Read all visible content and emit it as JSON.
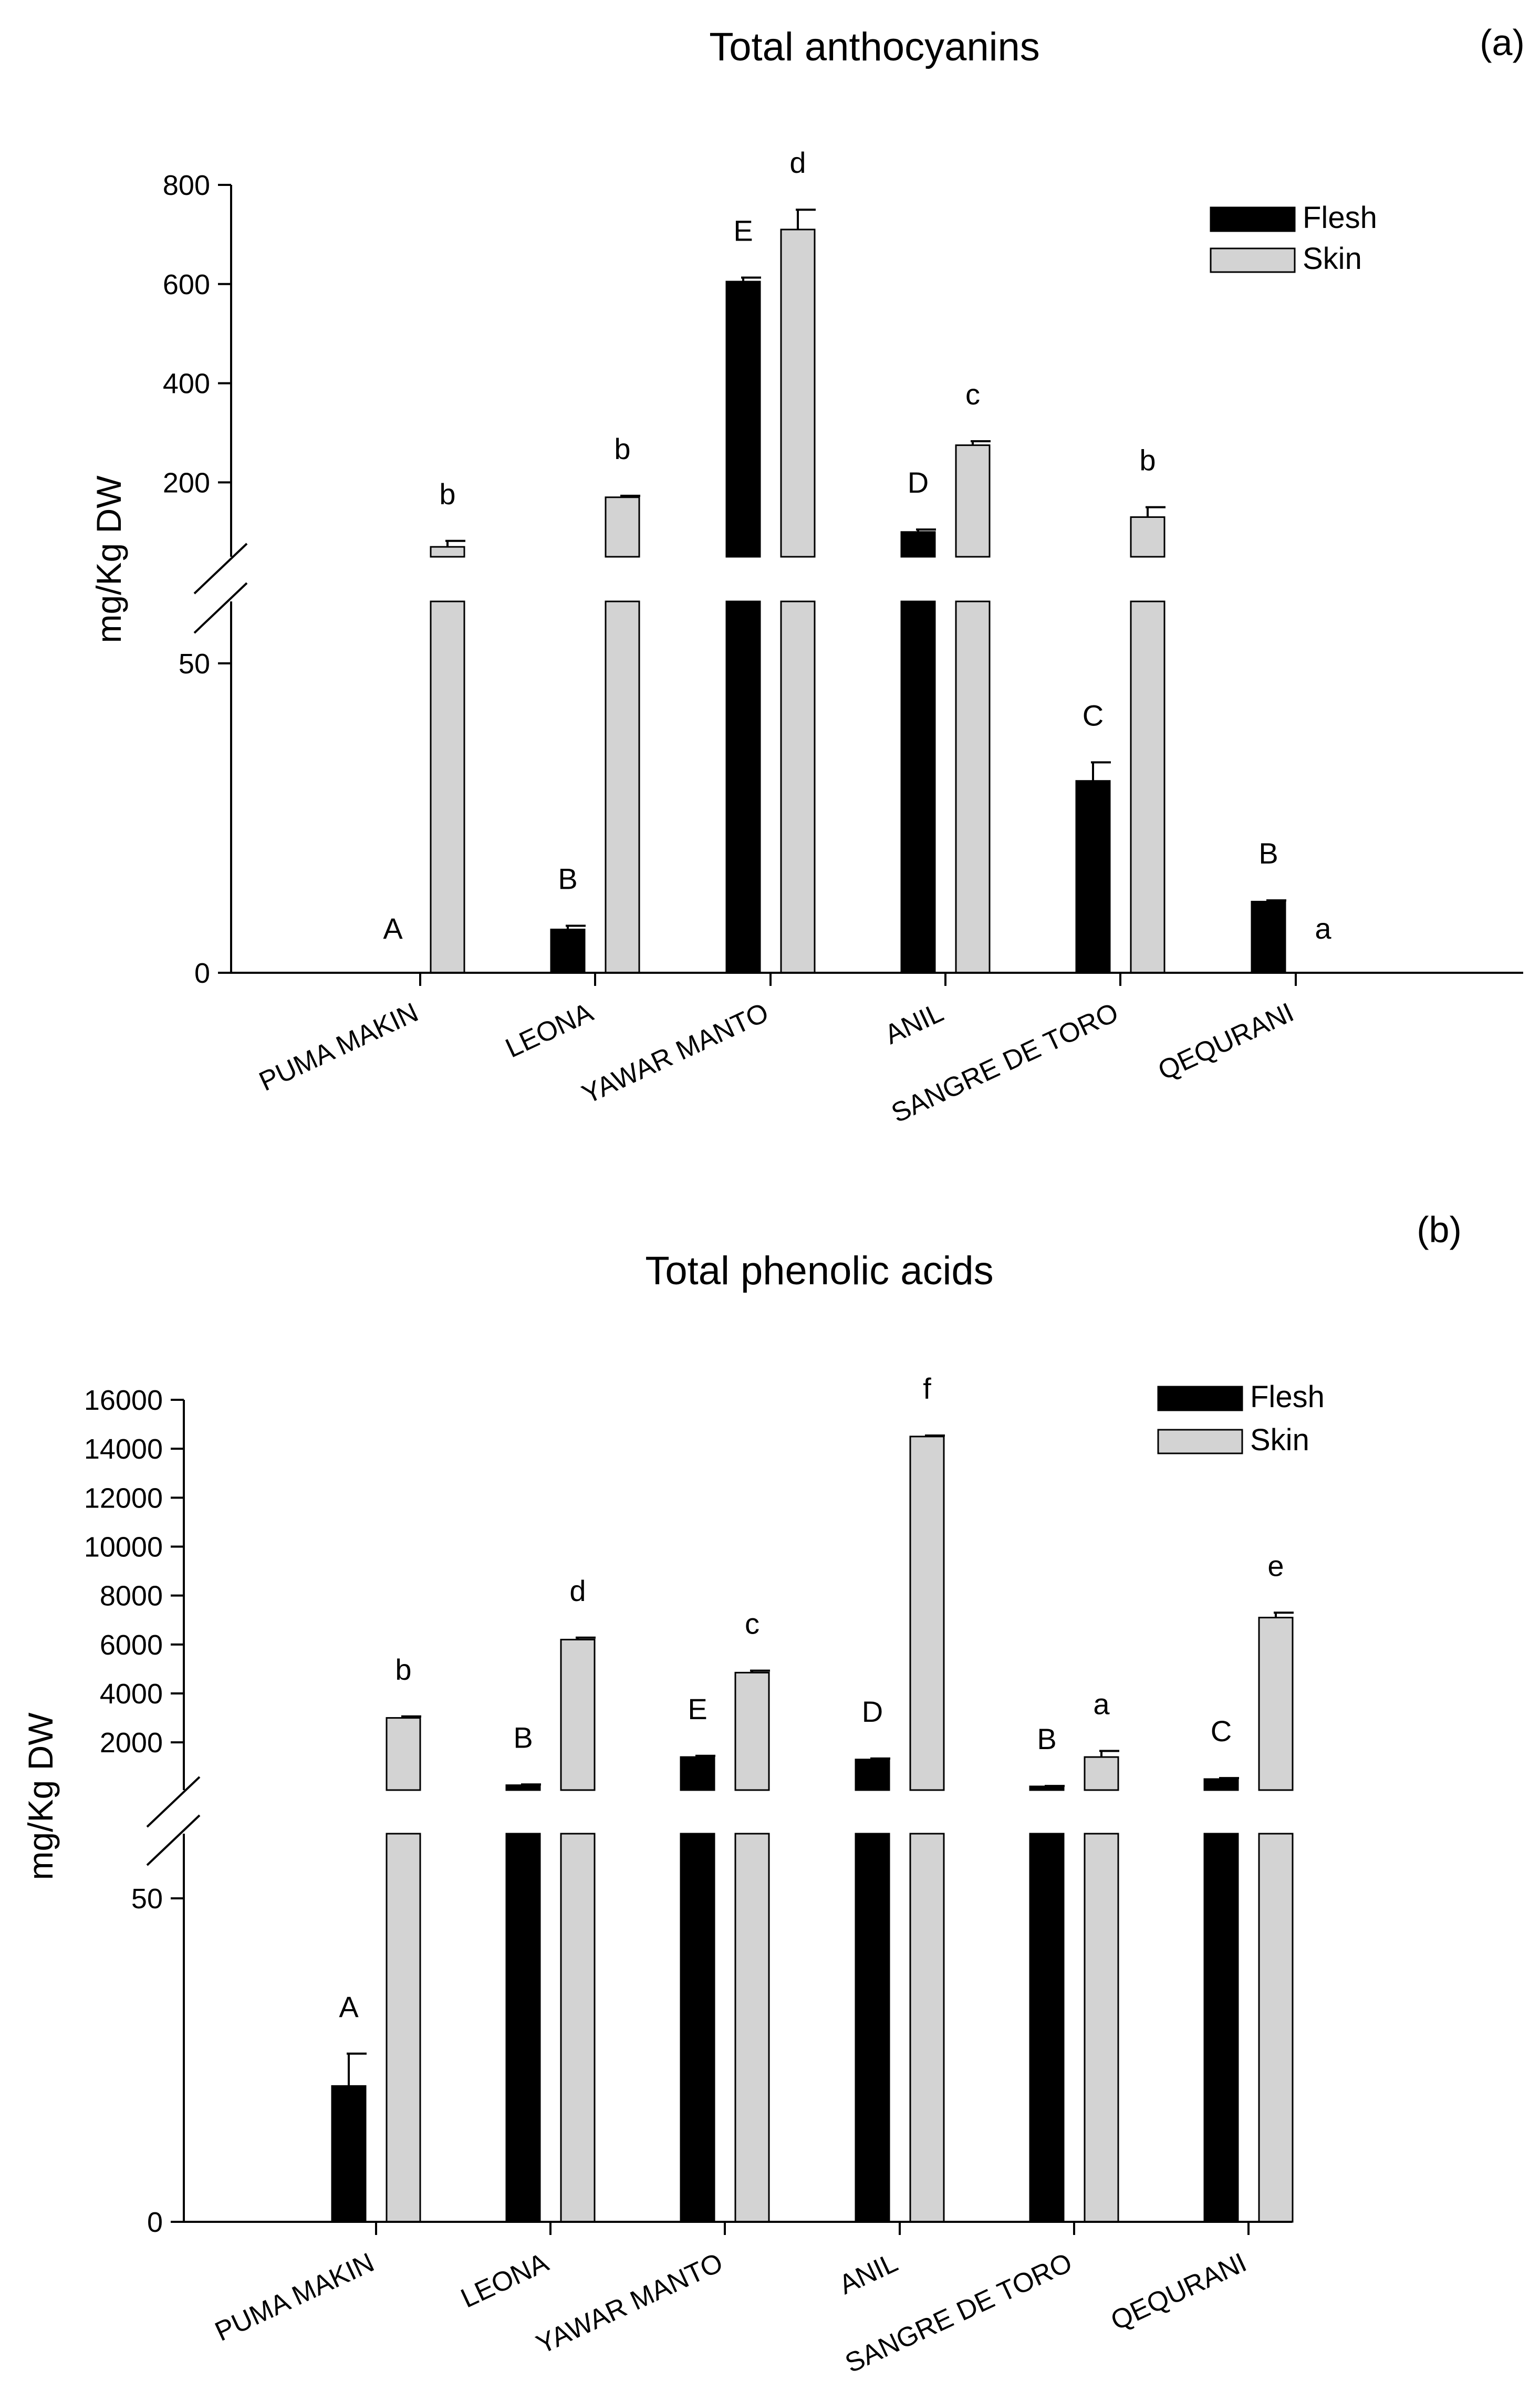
{
  "colors": {
    "flesh": "#000000",
    "skin": "#d3d3d3",
    "axis": "#000000",
    "background": "#ffffff"
  },
  "chart_data": [
    {
      "panel": "(a)",
      "type": "bar",
      "title": "Total anthocyanins",
      "ylabel": "mg/Kg DW",
      "xlabel": "",
      "axis_break": true,
      "lower_ylim": [
        0,
        60
      ],
      "upper_ylim": [
        50,
        800
      ],
      "lower_ticks": [
        {
          "value": 0,
          "label": "0"
        },
        {
          "value": 50,
          "label": "50"
        }
      ],
      "upper_ticks": [
        {
          "value": 200,
          "label": "200"
        },
        {
          "value": 400,
          "label": "400"
        },
        {
          "value": 600,
          "label": "600"
        },
        {
          "value": 800,
          "label": "800"
        }
      ],
      "legend": [
        "Flesh",
        "Skin"
      ],
      "legend_position": "top-right",
      "categories": [
        "PUMA MAKIN",
        "LEONA",
        "YAWAR MANTO",
        "ANIL",
        "SANGRE DE TORO",
        "QEQURANI"
      ],
      "series": [
        {
          "name": "Flesh",
          "values": [
            0,
            7,
            605,
            100,
            31,
            11.5
          ],
          "errors": [
            0,
            0.6,
            8,
            5,
            3,
            0.2
          ],
          "letters": [
            "A",
            "B",
            "E",
            "D",
            "C",
            "B"
          ]
        },
        {
          "name": "Skin",
          "values": [
            70,
            170,
            710,
            275,
            130,
            0
          ],
          "errors": [
            12,
            3,
            40,
            8,
            20,
            0
          ],
          "letters": [
            "b",
            "b",
            "d",
            "c",
            "b",
            "a"
          ]
        }
      ]
    },
    {
      "panel": "(b)",
      "type": "bar",
      "title": "Total phenolic acids",
      "ylabel": "mg/Kg DW",
      "xlabel": "",
      "axis_break": true,
      "lower_ylim": [
        0,
        60
      ],
      "upper_ylim": [
        50,
        16000
      ],
      "lower_ticks": [
        {
          "value": 0,
          "label": "0"
        },
        {
          "value": 50,
          "label": "50"
        }
      ],
      "upper_ticks": [
        {
          "value": 2000,
          "label": "2000"
        },
        {
          "value": 4000,
          "label": "4000"
        },
        {
          "value": 6000,
          "label": "6000"
        },
        {
          "value": 8000,
          "label": "8000"
        },
        {
          "value": 10000,
          "label": "10000"
        },
        {
          "value": 12000,
          "label": "12000"
        },
        {
          "value": 14000,
          "label": "14000"
        },
        {
          "value": 16000,
          "label": "16000"
        }
      ],
      "legend": [
        "Flesh",
        "Skin"
      ],
      "legend_position": "top-right",
      "categories": [
        "PUMA MAKIN",
        "LEONA",
        "YAWAR MANTO",
        "ANIL",
        "SANGRE DE TORO",
        "QEQURANI"
      ],
      "series": [
        {
          "name": "Flesh",
          "values": [
            21,
            250,
            1400,
            1300,
            200,
            500
          ],
          "errors": [
            5,
            30,
            50,
            40,
            20,
            40
          ],
          "letters": [
            "A",
            "B",
            "E",
            "D",
            "B",
            "C"
          ]
        },
        {
          "name": "Skin",
          "values": [
            3000,
            6200,
            4850,
            14500,
            1400,
            7100
          ],
          "errors": [
            60,
            80,
            80,
            40,
            250,
            200
          ],
          "letters": [
            "b",
            "d",
            "c",
            "f",
            "a",
            "e"
          ]
        }
      ]
    }
  ]
}
